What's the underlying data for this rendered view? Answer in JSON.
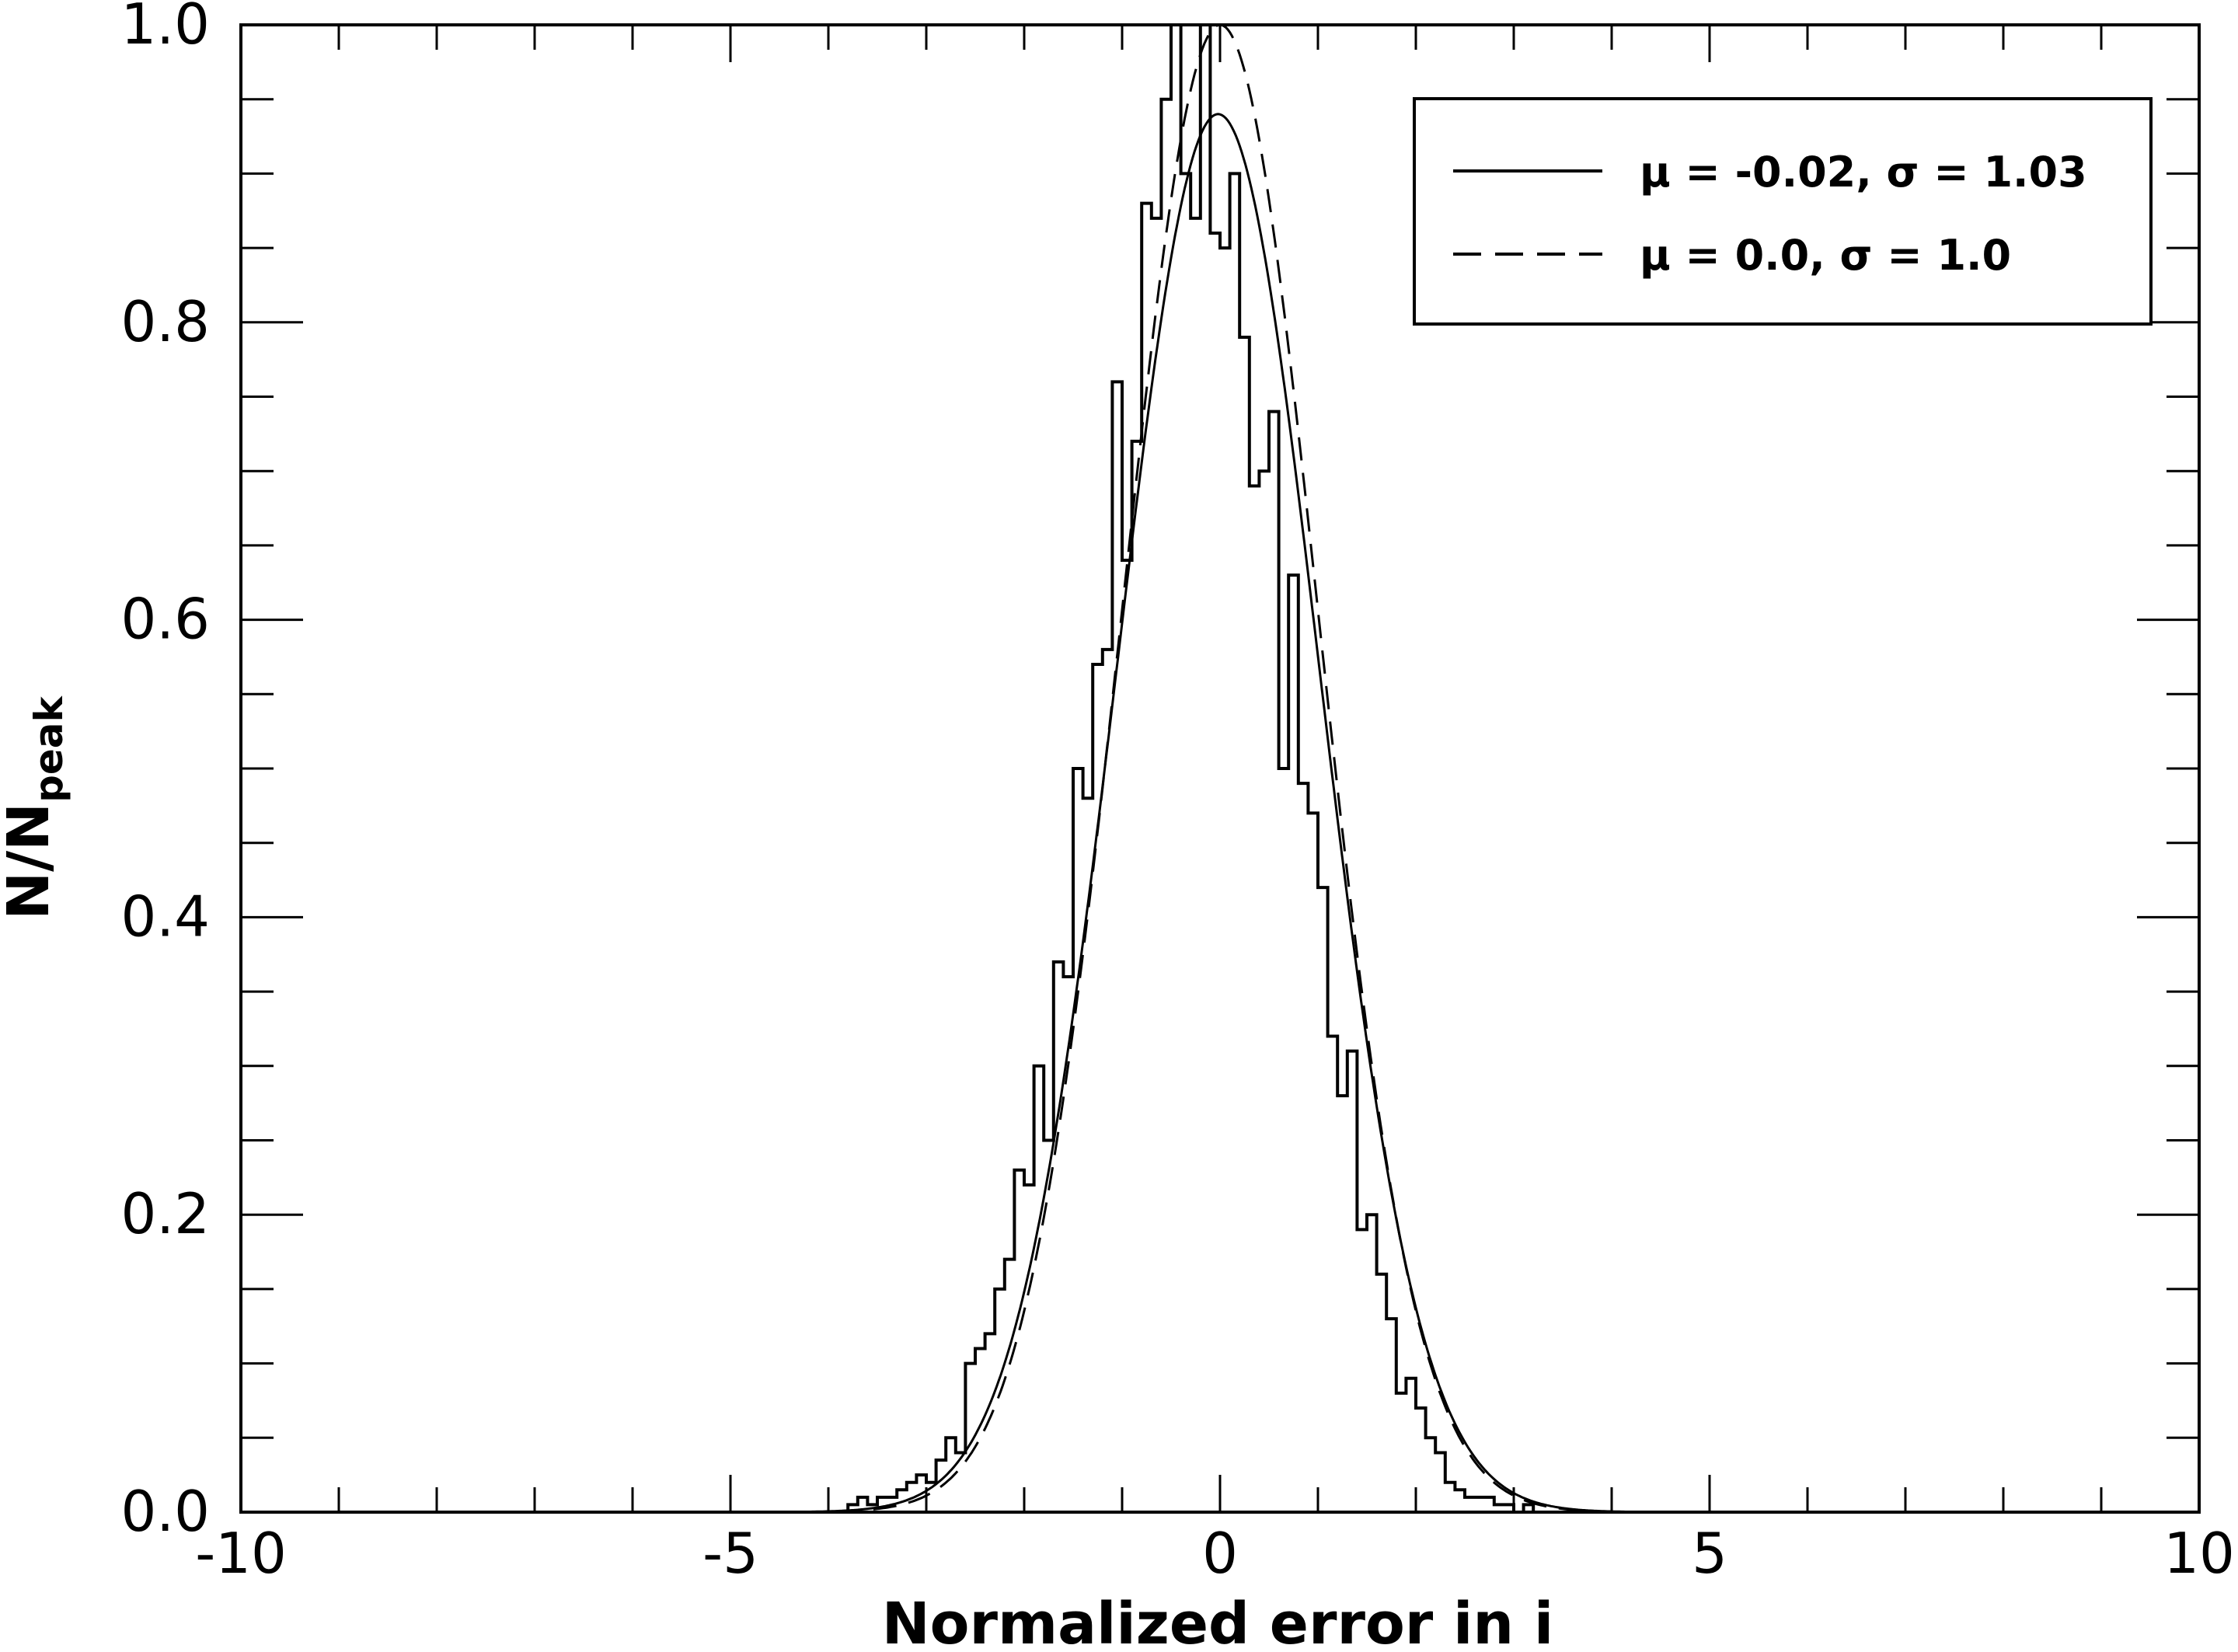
{
  "chart_data": {
    "type": "histogram",
    "xlabel": "Normalized error in i",
    "ylabel_main": "N/N",
    "ylabel_sub": "peak",
    "xlim": [
      -10,
      10
    ],
    "ylim": [
      0,
      1.0
    ],
    "x_ticks": [
      -10,
      -5,
      0,
      5,
      10
    ],
    "x_tick_labels": [
      "-10",
      "-5",
      "0",
      "5",
      "10"
    ],
    "y_ticks": [
      0,
      0.2,
      0.4,
      0.6,
      0.8,
      1.0
    ],
    "y_tick_labels": [
      "0.0",
      "0.2",
      "0.4",
      "0.6",
      "0.8",
      "1.0"
    ],
    "legend_position": "top-right",
    "legend": [
      {
        "style": "solid",
        "mu": "-0.02",
        "sigma": "1.03",
        "label": "μ = -0.02, σ = 1.03"
      },
      {
        "style": "dashed",
        "mu": "0.0",
        "sigma": "1.0",
        "label": "μ = 0.0, σ = 1.0"
      }
    ],
    "gaussians": [
      {
        "name": "μ = -0.02, σ = 1.03",
        "mu": -0.02,
        "sigma": 1.03,
        "peak": 0.94,
        "style": "solid"
      },
      {
        "name": "μ = 0.0, σ = 1.0",
        "mu": 0.0,
        "sigma": 1.0,
        "peak": 1.0,
        "style": "dashed"
      }
    ],
    "histogram": {
      "bin_edges": [
        -3.8,
        -3.7,
        -3.6,
        -3.5,
        -3.4,
        -3.3,
        -3.2,
        -3.1,
        -3.0,
        -2.9,
        -2.8,
        -2.7,
        -2.6,
        -2.5,
        -2.4,
        -2.3,
        -2.2,
        -2.1,
        -2.0,
        -1.9,
        -1.8,
        -1.7,
        -1.6,
        -1.5,
        -1.4,
        -1.3,
        -1.2,
        -1.1,
        -1.0,
        -0.9,
        -0.8,
        -0.7,
        -0.6,
        -0.5,
        -0.4,
        -0.3,
        -0.2,
        -0.1,
        0.0,
        0.1,
        0.2,
        0.3,
        0.4,
        0.5,
        0.6,
        0.7,
        0.8,
        0.9,
        1.0,
        1.1,
        1.2,
        1.3,
        1.4,
        1.5,
        1.6,
        1.7,
        1.8,
        1.9,
        2.0,
        2.1,
        2.2,
        2.3,
        2.4,
        2.5,
        2.6,
        2.7,
        2.8,
        2.9,
        3.0,
        3.1,
        3.2,
        3.3
      ],
      "counts": [
        0.005,
        0.01,
        0.005,
        0.01,
        0.01,
        0.015,
        0.02,
        0.025,
        0.02,
        0.035,
        0.05,
        0.04,
        0.1,
        0.11,
        0.12,
        0.15,
        0.17,
        0.23,
        0.22,
        0.3,
        0.25,
        0.37,
        0.36,
        0.5,
        0.48,
        0.57,
        0.58,
        0.76,
        0.64,
        0.72,
        0.88,
        0.87,
        0.95,
        1.0,
        0.9,
        0.87,
        1.0,
        0.86,
        0.85,
        0.9,
        0.79,
        0.69,
        0.7,
        0.74,
        0.5,
        0.63,
        0.49,
        0.47,
        0.42,
        0.32,
        0.28,
        0.31,
        0.19,
        0.2,
        0.16,
        0.13,
        0.08,
        0.09,
        0.07,
        0.05,
        0.04,
        0.02,
        0.015,
        0.01,
        0.01,
        0.01,
        0.005,
        0.005,
        0.0,
        0.005,
        0.0
      ]
    }
  }
}
